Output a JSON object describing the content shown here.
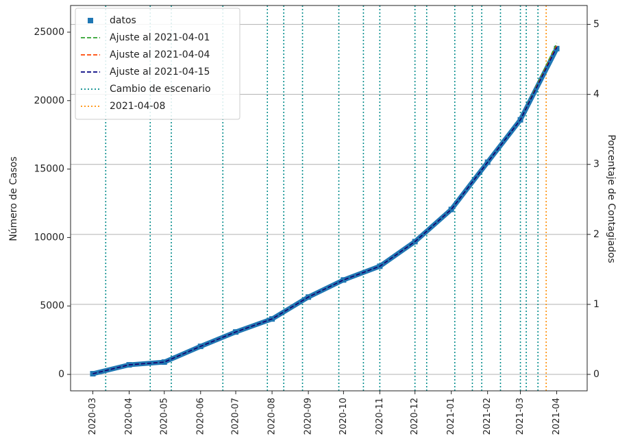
{
  "chart_data": {
    "type": "line",
    "ylabel": "Número de Casos",
    "y2label": "Porcentaje de Contagiados",
    "xlim": [
      "2020-02-11",
      "2021-04-27"
    ],
    "xticks": [
      "2020-03",
      "2020-04",
      "2020-05",
      "2020-06",
      "2020-07",
      "2020-08",
      "2020-09",
      "2020-10",
      "2020-11",
      "2020-12",
      "2021-01",
      "2021-02",
      "2021-03",
      "2021-04"
    ],
    "ylim": [
      -1200,
      26950
    ],
    "yticks": [
      0,
      5000,
      10000,
      15000,
      20000,
      25000
    ],
    "y2lim": [
      -0.235,
      5.27
    ],
    "y2ticks": [
      0,
      1,
      2,
      3,
      4,
      5
    ],
    "y2grid": true,
    "legend": "upper left",
    "series": [
      {
        "name": "datos",
        "color": "#1f77b4",
        "style": "square",
        "x": [
          "2020-03",
          "2020-04",
          "2020-05",
          "2020-06",
          "2020-07",
          "2020-08",
          "2020-09",
          "2020-10",
          "2020-11",
          "2020-12",
          "2021-01",
          "2021-02",
          "2021-03",
          "2021-04"
        ],
        "values": [
          50,
          700,
          900,
          2050,
          3100,
          4050,
          5650,
          6900,
          7900,
          9700,
          12050,
          15500,
          18600,
          23800
        ]
      },
      {
        "name": "Ajuste al 2021-04-01",
        "color": "#2ca02c",
        "style": "dashed",
        "x": [
          "2020-03",
          "2020-04",
          "2020-05",
          "2020-06",
          "2020-07",
          "2020-08",
          "2020-09",
          "2020-10",
          "2020-11",
          "2020-12",
          "2021-01",
          "2021-02",
          "2021-03",
          "2021-04"
        ],
        "values": [
          50,
          700,
          900,
          2050,
          3100,
          4050,
          5650,
          6900,
          7900,
          9700,
          12050,
          15500,
          18600,
          24200
        ]
      },
      {
        "name": "Ajuste al 2021-04-04",
        "color": "#ff4500",
        "style": "dashed",
        "x": [
          "2020-03",
          "2020-04",
          "2020-05",
          "2020-06",
          "2020-07",
          "2020-08",
          "2020-09",
          "2020-10",
          "2020-11",
          "2020-12",
          "2021-01",
          "2021-02",
          "2021-03",
          "2021-04"
        ],
        "values": [
          50,
          700,
          900,
          2050,
          3100,
          4050,
          5650,
          6900,
          7900,
          9700,
          12050,
          15500,
          18600,
          24000
        ]
      },
      {
        "name": "Ajuste al 2021-04-15",
        "color": "#000080",
        "style": "dashed",
        "x": [
          "2020-03",
          "2020-04",
          "2020-05",
          "2020-06",
          "2020-07",
          "2020-08",
          "2020-09",
          "2020-10",
          "2020-11",
          "2020-12",
          "2021-01",
          "2021-02",
          "2021-03",
          "2021-04"
        ],
        "values": [
          50,
          700,
          900,
          2050,
          3100,
          4050,
          5650,
          6900,
          7900,
          9700,
          12050,
          15500,
          18600,
          23900
        ]
      }
    ],
    "vlines": [
      {
        "name": "Cambio de escenario",
        "color": "#008b8b",
        "x": [
          "2020-03-12",
          "2020-04-19",
          "2020-05-07",
          "2020-06-20",
          "2020-07-28",
          "2020-08-11",
          "2020-08-27",
          "2020-09-27",
          "2020-10-18",
          "2020-11-01",
          "2020-12-01",
          "2020-12-11",
          "2021-01-04",
          "2021-01-19",
          "2021-01-27",
          "2021-02-12",
          "2021-03-01",
          "2021-03-06",
          "2021-03-16"
        ]
      },
      {
        "name": "2021-04-08",
        "color": "#ff8c00",
        "x": [
          "2021-03-23"
        ]
      }
    ]
  }
}
